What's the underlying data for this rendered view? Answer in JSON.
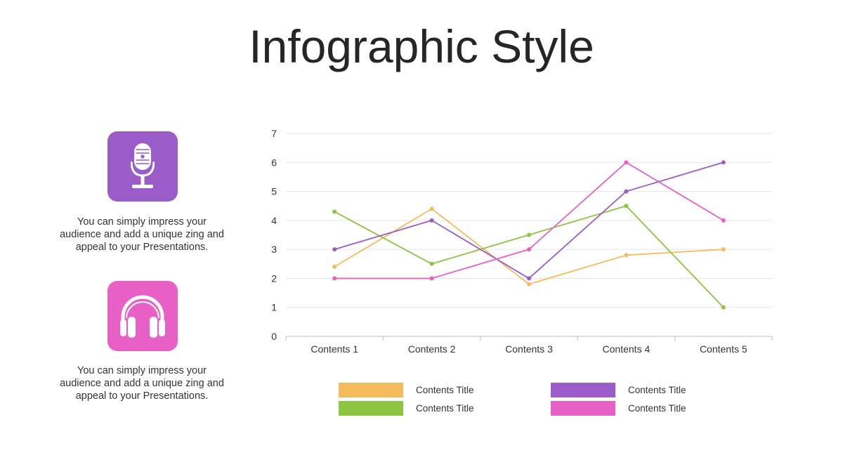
{
  "title": "Infographic Style",
  "colors": {
    "orange": "#F4BC5C",
    "green": "#8DC542",
    "purple": "#9A5CC8",
    "pink": "#E85FC5",
    "grid": "#E6E6E6",
    "axis": "#BFBFBF"
  },
  "cards": [
    {
      "icon": "microphone-icon",
      "color": "#9A5CC8",
      "text": "You can simply impress your audience and add a unique zing and appeal to your Presentations."
    },
    {
      "icon": "headphones-icon",
      "color": "#E85FC5",
      "text": "You can simply impress your audience and add a unique zing and appeal to your Presentations."
    }
  ],
  "chart_data": {
    "type": "line",
    "categories": [
      "Contents 1",
      "Contents 2",
      "Contents 3",
      "Contents 4",
      "Contents 5"
    ],
    "ylim": [
      0,
      7
    ],
    "yticks": [
      "0",
      "1",
      "2",
      "3",
      "4",
      "5",
      "6",
      "7"
    ],
    "grid": true,
    "legend_position": "bottom",
    "series": [
      {
        "name": "Contents Title",
        "color": "#F4BC5C",
        "values": [
          2.4,
          4.4,
          1.8,
          2.8,
          3.0
        ]
      },
      {
        "name": "Contents Title",
        "color": "#8DC542",
        "values": [
          4.3,
          2.5,
          3.5,
          4.5,
          1.0
        ]
      },
      {
        "name": "Contents Title",
        "color": "#9A5CC8",
        "values": [
          3.0,
          4.0,
          2.0,
          5.0,
          6.0
        ]
      },
      {
        "name": "Contents Title",
        "color": "#E85FC5",
        "values": [
          2.0,
          2.0,
          3.0,
          6.0,
          4.0
        ]
      }
    ]
  }
}
